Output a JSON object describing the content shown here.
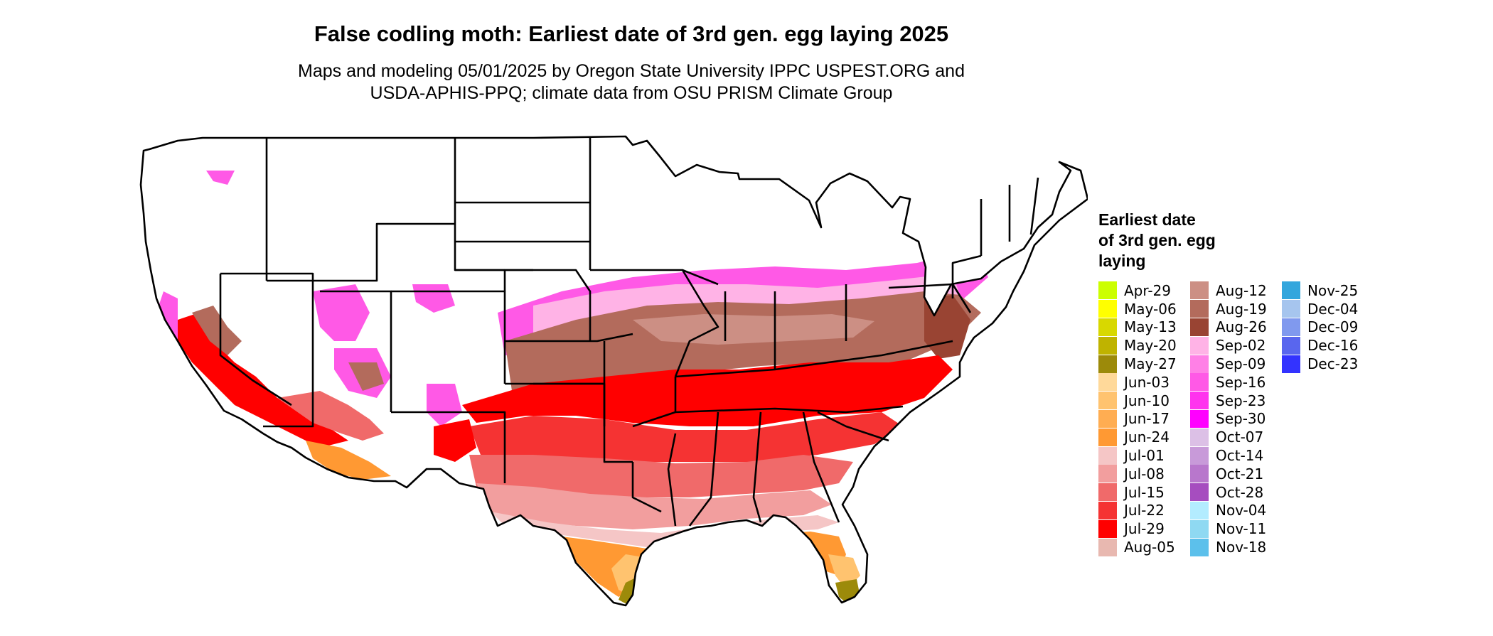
{
  "title": "False codling moth: Earliest date of 3rd gen. egg laying 2025",
  "subtitle_line1": "Maps and modeling 05/01/2025 by Oregon State University IPPC USPEST.ORG and",
  "subtitle_line2": "USDA-APHIS-PPQ; climate data from OSU PRISM Climate Group",
  "map": {
    "region": "Contiguous United States",
    "outline_color": "#000000",
    "unaffected_color": "#ffffff"
  },
  "legend": {
    "title_lines": [
      "Earliest date",
      "of 3rd gen. egg",
      "laying"
    ],
    "items": [
      {
        "label": "Apr-29",
        "color": "#ccff00"
      },
      {
        "label": "May-06",
        "color": "#ffff00"
      },
      {
        "label": "May-13",
        "color": "#d8d800"
      },
      {
        "label": "May-20",
        "color": "#bfb300"
      },
      {
        "label": "May-27",
        "color": "#9c8a0a"
      },
      {
        "label": "Jun-03",
        "color": "#ffd99a"
      },
      {
        "label": "Jun-10",
        "color": "#ffc36f"
      },
      {
        "label": "Jun-17",
        "color": "#ffad52"
      },
      {
        "label": "Jun-24",
        "color": "#ff9933"
      },
      {
        "label": "Jul-01",
        "color": "#f5c6c6"
      },
      {
        "label": "Jul-08",
        "color": "#f29e9e"
      },
      {
        "label": "Jul-15",
        "color": "#f06a6a"
      },
      {
        "label": "Jul-22",
        "color": "#f53333"
      },
      {
        "label": "Jul-29",
        "color": "#ff0000"
      },
      {
        "label": "Aug-05",
        "color": "#e8b8b0"
      },
      {
        "label": "Aug-12",
        "color": "#cc8f84"
      },
      {
        "label": "Aug-19",
        "color": "#b36b5c"
      },
      {
        "label": "Aug-26",
        "color": "#994433"
      },
      {
        "label": "Sep-02",
        "color": "#ffb3e6"
      },
      {
        "label": "Sep-09",
        "color": "#ff80e6"
      },
      {
        "label": "Sep-16",
        "color": "#ff59e6"
      },
      {
        "label": "Sep-23",
        "color": "#ff33ee"
      },
      {
        "label": "Sep-30",
        "color": "#ff00ff"
      },
      {
        "label": "Oct-07",
        "color": "#dcc0e6"
      },
      {
        "label": "Oct-14",
        "color": "#c89ad9"
      },
      {
        "label": "Oct-21",
        "color": "#b877cc"
      },
      {
        "label": "Oct-28",
        "color": "#a64dbf"
      },
      {
        "label": "Nov-04",
        "color": "#b3ecff"
      },
      {
        "label": "Nov-11",
        "color": "#8fd9f2"
      },
      {
        "label": "Nov-18",
        "color": "#5cc0eb"
      },
      {
        "label": "Nov-25",
        "color": "#33a6dd"
      },
      {
        "label": "Dec-04",
        "color": "#a6c5ee"
      },
      {
        "label": "Dec-09",
        "color": "#8099ee"
      },
      {
        "label": "Dec-16",
        "color": "#5966ee"
      },
      {
        "label": "Dec-23",
        "color": "#3333ff"
      }
    ]
  }
}
